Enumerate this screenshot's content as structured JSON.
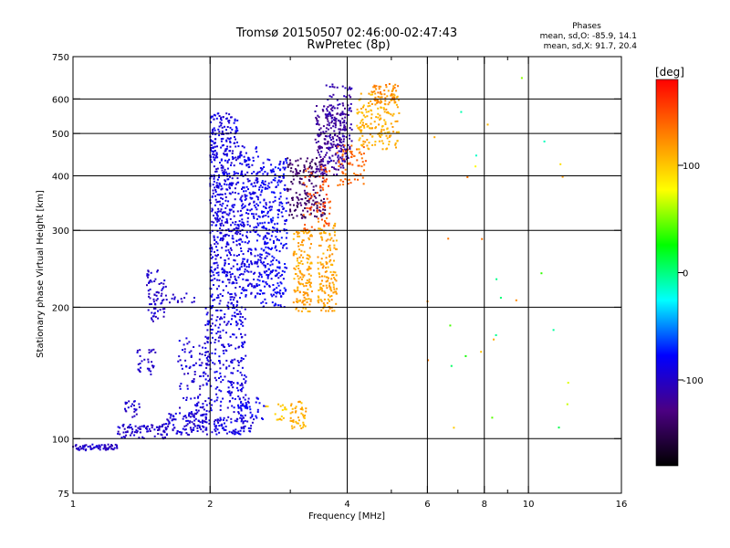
{
  "chart_data": {
    "type": "scatter",
    "title": "Tromsø 20150507 02:46:00-02:47:43",
    "subtitle": "RwPretec (8p)",
    "xlabel": "Frequency [MHz]",
    "ylabel": "Stationary phase Virtual Height [km]",
    "x_scale": "log",
    "y_scale": "log",
    "xlim": [
      1,
      16
    ],
    "ylim": [
      75,
      750
    ],
    "x_ticks": [
      1,
      2,
      4,
      6,
      8,
      10,
      16
    ],
    "x_tick_labels": [
      "1",
      "2",
      "4",
      "6",
      "8",
      "10",
      "16"
    ],
    "x_minor_ticks": [
      3,
      5,
      7,
      9
    ],
    "x_grid": [
      2,
      4,
      6,
      8,
      10
    ],
    "y_ticks": [
      75,
      100,
      200,
      300,
      400,
      500,
      600,
      750
    ],
    "y_tick_labels": [
      "75",
      "100",
      "200",
      "300",
      "400",
      "500",
      "600",
      "750"
    ],
    "y_grid": [
      100,
      200,
      300,
      400,
      500,
      600
    ],
    "grid": true,
    "info": {
      "heading": "Phases",
      "line1": "mean, sd,O:  -85.9,  14.1",
      "line2": "mean, sd,X:  91.7,  20.4"
    },
    "colorbar": {
      "label": "[deg]",
      "ticks": [
        100,
        0,
        -100
      ],
      "tick_labels": [
        "100",
        "0",
        "-100"
      ],
      "range": [
        -180,
        180
      ],
      "colors_top_to_bottom": [
        "#ff0000",
        "#ff8000",
        "#ffff00",
        "#00ff00",
        "#00ffff",
        "#0000ff",
        "#4b0082",
        "#000000"
      ]
    },
    "clusters": [
      {
        "x": [
          1.0,
          1.25
        ],
        "y": [
          94,
          97
        ],
        "phase": -100,
        "n": 70
      },
      {
        "x": [
          1.25,
          1.6
        ],
        "y": [
          100,
          108
        ],
        "phase": -100,
        "n": 80
      },
      {
        "x": [
          1.6,
          2.0
        ],
        "y": [
          102,
          115
        ],
        "phase": -95,
        "n": 110
      },
      {
        "x": [
          2.0,
          2.5
        ],
        "y": [
          102,
          112
        ],
        "phase": -90,
        "n": 80
      },
      {
        "x": [
          1.3,
          1.4
        ],
        "y": [
          112,
          122
        ],
        "phase": -100,
        "n": 22
      },
      {
        "x": [
          1.38,
          1.52
        ],
        "y": [
          140,
          160
        ],
        "phase": -100,
        "n": 30
      },
      {
        "x": [
          1.45,
          1.6
        ],
        "y": [
          185,
          245
        ],
        "phase": -100,
        "n": 70
      },
      {
        "x": [
          1.6,
          1.85
        ],
        "y": [
          205,
          215
        ],
        "phase": -100,
        "n": 16
      },
      {
        "x": [
          1.7,
          2.0
        ],
        "y": [
          112,
          170
        ],
        "phase": -95,
        "n": 100
      },
      {
        "x": [
          1.95,
          2.4
        ],
        "y": [
          115,
          200
        ],
        "phase": -90,
        "n": 250
      },
      {
        "x": [
          2.3,
          2.65
        ],
        "y": [
          110,
          125
        ],
        "phase": -85,
        "n": 40
      },
      {
        "x": [
          2.0,
          2.3
        ],
        "y": [
          200,
          560
        ],
        "phase": -90,
        "n": 520
      },
      {
        "x": [
          2.3,
          2.55
        ],
        "y": [
          210,
          470
        ],
        "phase": -88,
        "n": 260
      },
      {
        "x": [
          2.55,
          2.95
        ],
        "y": [
          200,
          440
        ],
        "phase": -82,
        "n": 340
      },
      {
        "x": [
          2.65,
          2.95
        ],
        "y": [
          110,
          120
        ],
        "phase": 100,
        "n": 18
      },
      {
        "x": [
          3.0,
          3.25
        ],
        "y": [
          105,
          122
        ],
        "phase": 110,
        "n": 45
      },
      {
        "x": [
          2.95,
          3.6
        ],
        "y": [
          320,
          440
        ],
        "phase": -140,
        "n": 180
      },
      {
        "x": [
          3.05,
          3.35
        ],
        "y": [
          195,
          300
        ],
        "phase": 115,
        "n": 150
      },
      {
        "x": [
          3.45,
          3.8
        ],
        "y": [
          195,
          320
        ],
        "phase": 115,
        "n": 150
      },
      {
        "x": [
          3.4,
          4.0
        ],
        "y": [
          400,
          580
        ],
        "phase": -120,
        "n": 200
      },
      {
        "x": [
          3.6,
          4.1
        ],
        "y": [
          430,
          650
        ],
        "phase": -110,
        "n": 110
      },
      {
        "x": [
          3.2,
          3.7
        ],
        "y": [
          300,
          420
        ],
        "phase": 150,
        "n": 70
      },
      {
        "x": [
          3.8,
          4.4
        ],
        "y": [
          380,
          470
        ],
        "phase": 140,
        "n": 70
      },
      {
        "x": [
          4.2,
          5.2
        ],
        "y": [
          460,
          620
        ],
        "phase": 110,
        "n": 160
      },
      {
        "x": [
          4.5,
          5.2
        ],
        "y": [
          580,
          650
        ],
        "phase": 125,
        "n": 60
      },
      {
        "x": [
          6.0,
          12.5
        ],
        "y": [
          100,
          680
        ],
        "phase": 60,
        "n": 30
      }
    ],
    "legend": "top-right"
  }
}
